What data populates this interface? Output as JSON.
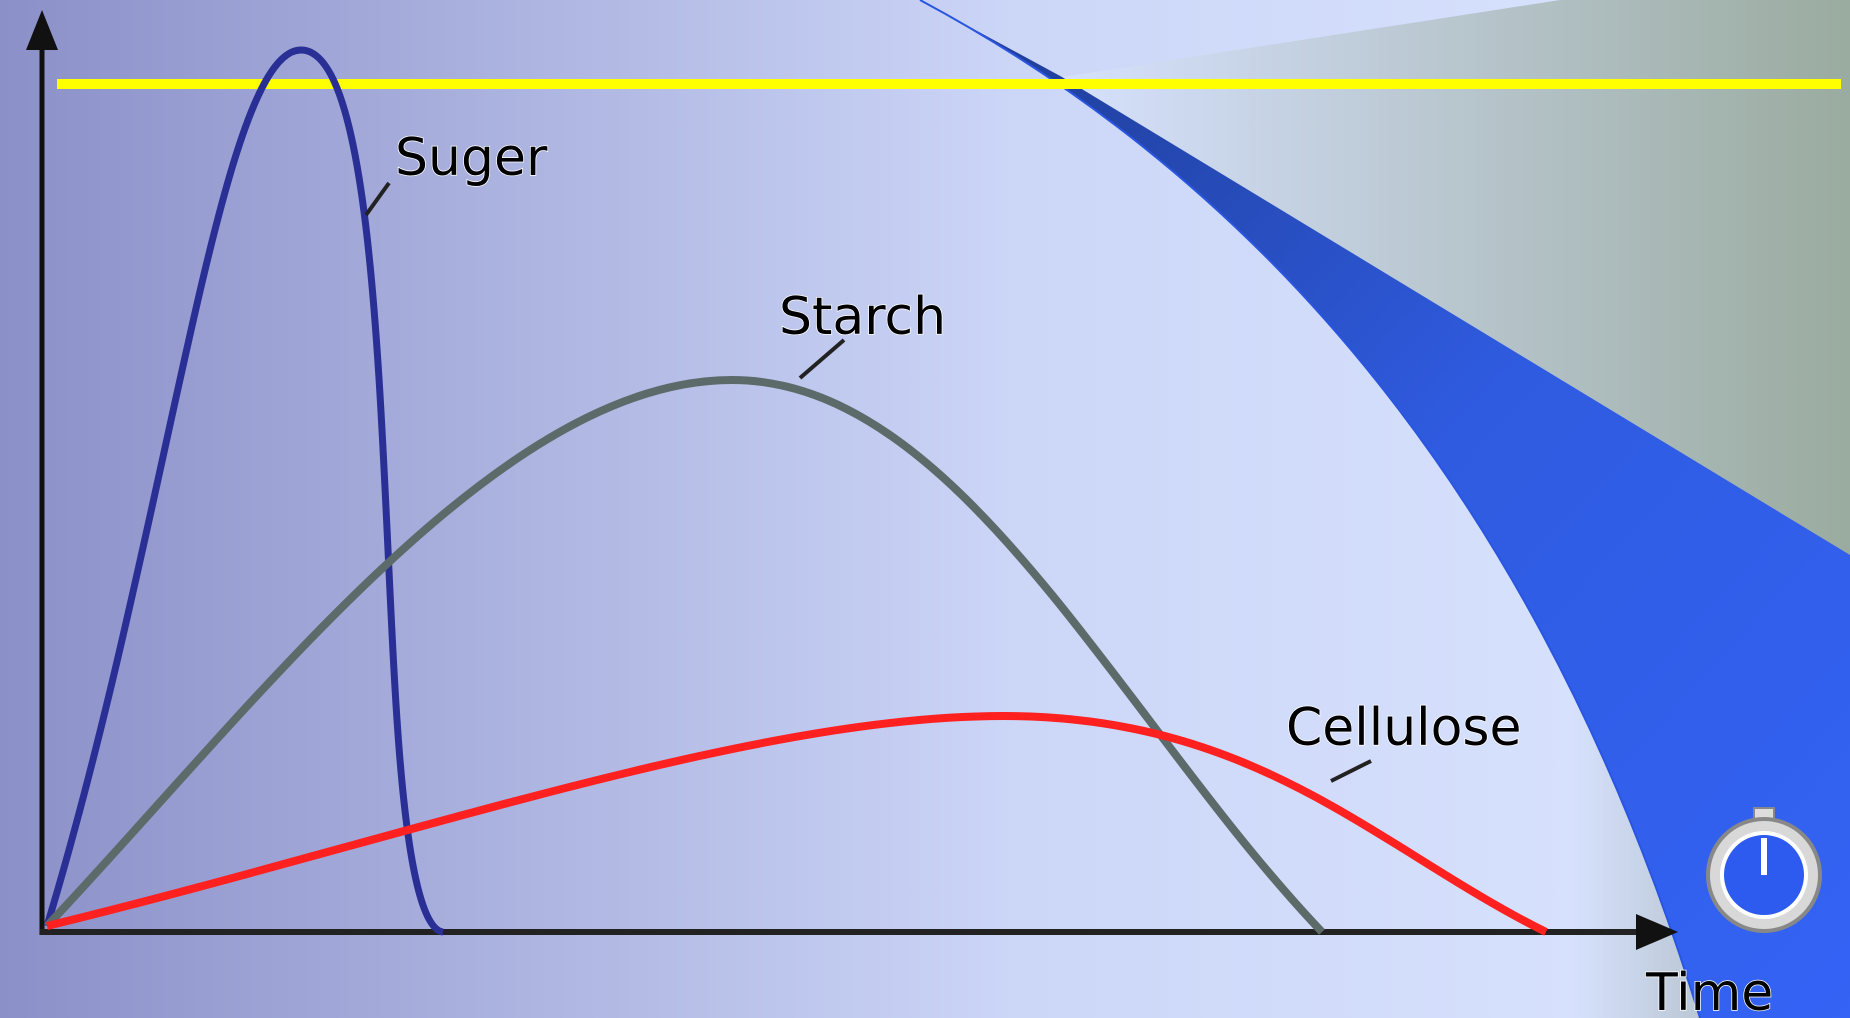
{
  "labels": {
    "sugar": "Suger",
    "starch": "Starch",
    "cellulose": "Cellulose",
    "time": "Time"
  }
}
